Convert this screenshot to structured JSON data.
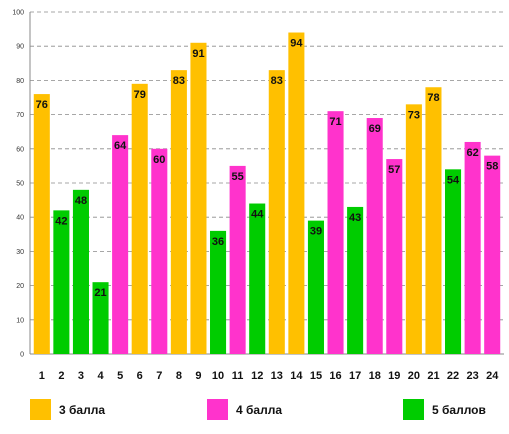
{
  "chart_data": {
    "type": "bar",
    "title": "",
    "xlabel": "",
    "ylabel": "",
    "ylim": [
      0,
      100
    ],
    "yticks": [
      0,
      10,
      20,
      30,
      40,
      50,
      60,
      70,
      80,
      90,
      100
    ],
    "grid": true,
    "legend_position": "bottom",
    "categories": [
      "1",
      "2",
      "3",
      "4",
      "5",
      "6",
      "7",
      "8",
      "9",
      "10",
      "11",
      "12",
      "13",
      "14",
      "15",
      "16",
      "17",
      "18",
      "19",
      "20",
      "21",
      "22",
      "23",
      "24"
    ],
    "values": [
      76,
      42,
      48,
      21,
      64,
      79,
      60,
      83,
      91,
      36,
      55,
      44,
      83,
      94,
      39,
      71,
      43,
      69,
      57,
      73,
      78,
      54,
      62,
      58
    ],
    "groups": [
      "3 балла",
      "5 баллов",
      "5 баллов",
      "5 баллов",
      "4 балла",
      "3 балла",
      "4 балла",
      "3 балла",
      "3 балла",
      "5 баллов",
      "4 балла",
      "5 баллов",
      "3 балла",
      "3 балла",
      "5 баллов",
      "4 балла",
      "5 баллов",
      "4 балла",
      "4 балла",
      "3 балла",
      "3 балла",
      "5 баллов",
      "4 балла",
      "4 балла"
    ],
    "legend": [
      {
        "label": "3 балла",
        "color": "#FFC000"
      },
      {
        "label": "4 балла",
        "color": "#FF33CC"
      },
      {
        "label": "5 баллов",
        "color": "#00CC00"
      }
    ]
  }
}
